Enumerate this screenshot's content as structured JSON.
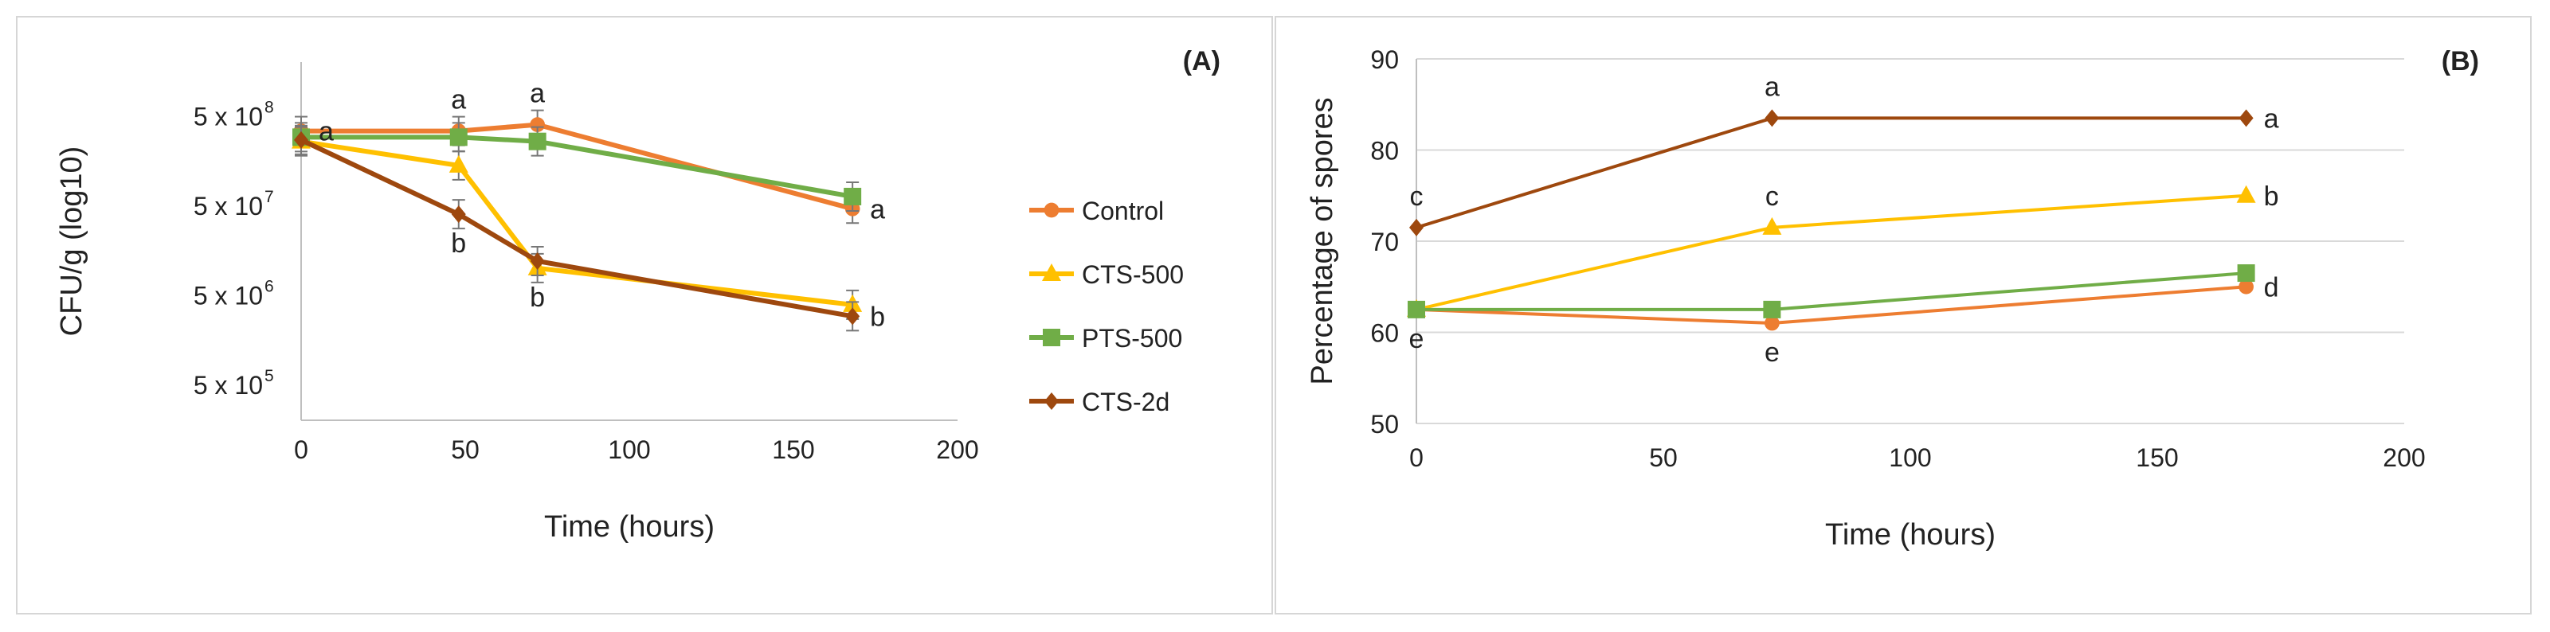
{
  "chart_data": [
    {
      "type": "line",
      "panel_label": "(A)",
      "xlabel": "Time (hours)",
      "ylabel": "CFU/g (log10)",
      "xlim": [
        0,
        200
      ],
      "xticks": [
        "0",
        "50",
        "100",
        "150",
        "200"
      ],
      "y_scale": "log",
      "ylim": [
        200000,
        2000000000
      ],
      "yticks": [
        {
          "value": 500000,
          "label": "5 x 10",
          "exp": "5"
        },
        {
          "value": 5000000,
          "label": "5 x 10",
          "exp": "6"
        },
        {
          "value": 50000000,
          "label": "5 x 10",
          "exp": "7"
        },
        {
          "value": 500000000,
          "label": "5 x 10",
          "exp": "8"
        }
      ],
      "grid": false,
      "legend_position": "right",
      "series": [
        {
          "name": "Control",
          "color": "#ED7D31",
          "marker": "circle",
          "x": [
            0,
            48,
            72,
            168
          ],
          "y": [
            340000000,
            340000000,
            400000000,
            46000000
          ]
        },
        {
          "name": "CTS-500",
          "color": "#FFC000",
          "marker": "triangle",
          "x": [
            0,
            48,
            72,
            168
          ],
          "y": [
            260000000,
            140000000,
            10000000,
            3900000
          ]
        },
        {
          "name": "PTS-500",
          "color": "#70AD47",
          "marker": "square",
          "x": [
            0,
            48,
            72,
            168
          ],
          "y": [
            290000000,
            290000000,
            260000000,
            63000000
          ]
        },
        {
          "name": "CTS-2d",
          "color": "#9E480E",
          "marker": "diamond",
          "x": [
            0,
            48,
            72,
            168
          ],
          "y": [
            270000000,
            40000000,
            12000000,
            2900000
          ]
        }
      ],
      "annotations": [
        {
          "text": "a",
          "x": 0,
          "y": 340000000,
          "pos": "right"
        },
        {
          "text": "a",
          "x": 48,
          "y": 340000000,
          "pos": "above"
        },
        {
          "text": "a",
          "x": 72,
          "y": 400000000,
          "pos": "above"
        },
        {
          "text": "a",
          "x": 168,
          "y": 46000000,
          "pos": "right"
        },
        {
          "text": "b",
          "x": 48,
          "y": 40000000,
          "pos": "below"
        },
        {
          "text": "b",
          "x": 72,
          "y": 10000000,
          "pos": "below"
        },
        {
          "text": "b",
          "x": 168,
          "y": 2900000,
          "pos": "right"
        }
      ]
    },
    {
      "type": "line",
      "panel_label": "(B)",
      "xlabel": "Time (hours)",
      "ylabel": "Percentage of spores",
      "xlim": [
        0,
        200
      ],
      "xticks": [
        "0",
        "50",
        "100",
        "150",
        "200"
      ],
      "ylim": [
        50,
        90
      ],
      "yticks": [
        "50",
        "60",
        "70",
        "80",
        "90"
      ],
      "grid": true,
      "series": [
        {
          "name": "Control",
          "color": "#ED7D31",
          "marker": "circle",
          "x": [
            0,
            72,
            168
          ],
          "y": [
            62.5,
            61,
            65
          ]
        },
        {
          "name": "CTS-500",
          "color": "#FFC000",
          "marker": "triangle",
          "x": [
            0,
            72,
            168
          ],
          "y": [
            62.5,
            71.5,
            75
          ]
        },
        {
          "name": "PTS-500",
          "color": "#70AD47",
          "marker": "square",
          "x": [
            0,
            72,
            168
          ],
          "y": [
            62.5,
            62.5,
            66.5
          ]
        },
        {
          "name": "CTS-2d",
          "color": "#9E480E",
          "marker": "diamond",
          "x": [
            0,
            72,
            168
          ],
          "y": [
            71.5,
            83.5,
            83.5
          ]
        }
      ],
      "annotations": [
        {
          "text": "c",
          "x": 0,
          "y": 71.5,
          "pos": "above"
        },
        {
          "text": "e",
          "x": 0,
          "y": 62.5,
          "pos": "below"
        },
        {
          "text": "a",
          "x": 72,
          "y": 83.5,
          "pos": "above"
        },
        {
          "text": "c",
          "x": 72,
          "y": 71.5,
          "pos": "above"
        },
        {
          "text": "e",
          "x": 72,
          "y": 61,
          "pos": "below"
        },
        {
          "text": "a",
          "x": 168,
          "y": 83.5,
          "pos": "right"
        },
        {
          "text": "b",
          "x": 168,
          "y": 75,
          "pos": "right"
        },
        {
          "text": "d",
          "x": 168,
          "y": 65,
          "pos": "right"
        }
      ]
    }
  ]
}
